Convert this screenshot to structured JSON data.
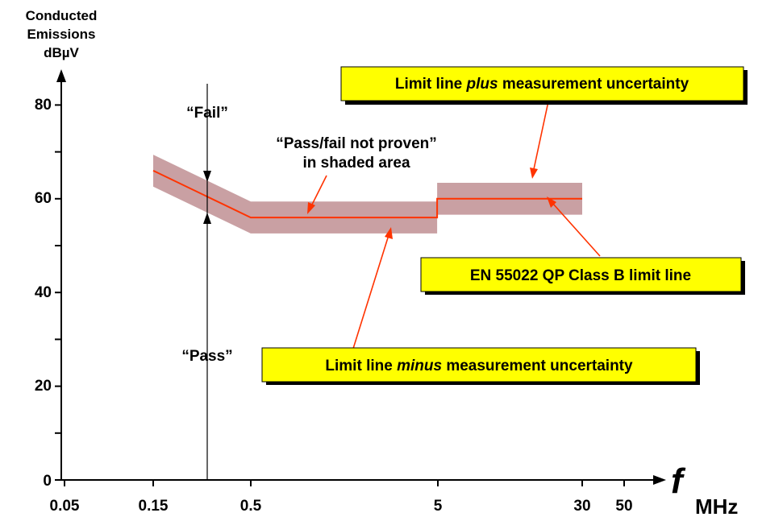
{
  "chart_data": {
    "type": "line",
    "ylabel": [
      "Conducted",
      "Emissions",
      "dBµV"
    ],
    "xlabel_symbol": "f",
    "xlabel_unit": "MHz",
    "x_scale": "log",
    "xlim": [
      0.05,
      50
    ],
    "ylim": [
      0,
      80
    ],
    "x_ticks": [
      0.05,
      0.15,
      0.5,
      5,
      30,
      50
    ],
    "x_tick_labels": [
      "0.05",
      "0.15",
      "0.5",
      "5",
      "30",
      "50"
    ],
    "y_ticks": [
      0,
      20,
      40,
      60,
      80
    ],
    "y_tick_labels": [
      "0",
      "20",
      "40",
      "60",
      "80"
    ],
    "uncertainty_db": 3.4,
    "series": [
      {
        "name": "EN 55022 QP Class B limit line",
        "color": "#ff3300",
        "points": [
          [
            0.15,
            66
          ],
          [
            0.5,
            56
          ],
          [
            5,
            56
          ],
          [
            5,
            60
          ],
          [
            30,
            60
          ]
        ]
      }
    ],
    "band_color": "#c9a0a3",
    "annotations": {
      "fail": "“Fail”",
      "pass": "“Pass”",
      "not_proven_line1": "“Pass/fail not proven”",
      "not_proven_line2": "in shaded area",
      "box_plus_pre": "Limit line ",
      "box_plus_em": "plus",
      "box_plus_post": " measurement uncertainty",
      "box_limit": "EN 55022 QP Class B limit line",
      "box_minus_pre": "Limit line ",
      "box_minus_em": "minus",
      "box_minus_post": " measurement uncertainty"
    },
    "box_color": "#ffff00",
    "arrow_color": "#ff3300",
    "marker_frequency": 0.3
  }
}
